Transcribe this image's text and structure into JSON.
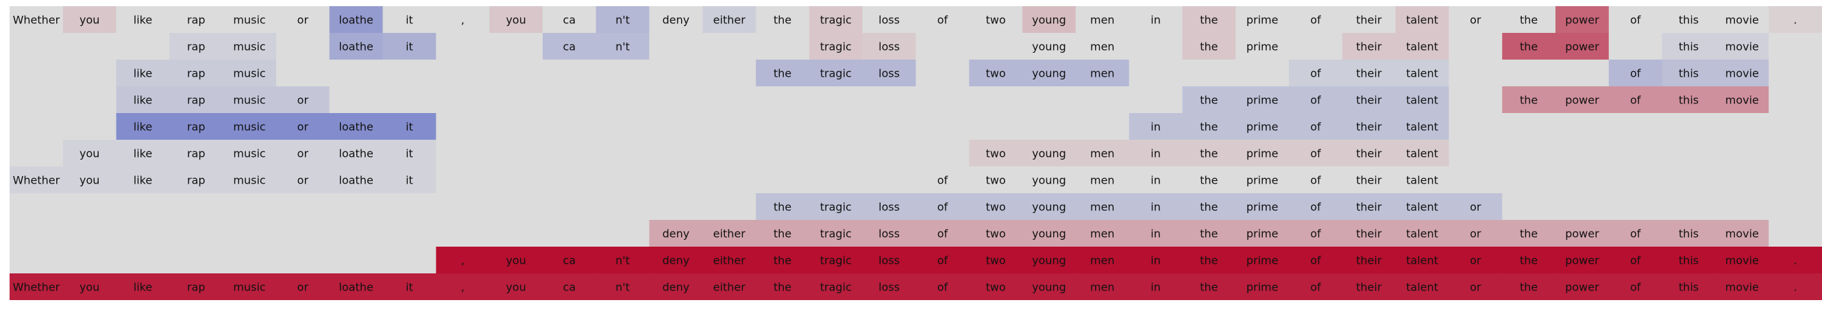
{
  "chart_data": {
    "type": "heatmap",
    "tokens": [
      "Whether",
      "you",
      "like",
      "rap",
      "music",
      "or",
      "loathe",
      "it",
      ",",
      "you",
      "ca",
      "n't",
      "deny",
      "either",
      "the",
      "tragic",
      "loss",
      "of",
      "two",
      "young",
      "men",
      "in",
      "the",
      "prime",
      "of",
      "their",
      "talent",
      "or",
      "the",
      "power",
      "of",
      "this",
      "movie",
      "."
    ],
    "rows": [
      {
        "scores": [
          0,
          0.1,
          0,
          0,
          0,
          0,
          -0.45,
          0,
          0,
          0.1,
          0,
          -0.25,
          0,
          -0.1,
          0,
          0.1,
          0,
          0,
          0,
          0.15,
          0,
          0,
          0.1,
          0,
          0,
          0,
          0.1,
          0,
          0,
          0.55,
          0,
          0,
          0,
          0.05
        ],
        "shown": [
          1,
          1,
          1,
          1,
          1,
          1,
          1,
          1,
          1,
          1,
          1,
          1,
          1,
          1,
          1,
          1,
          1,
          1,
          1,
          1,
          1,
          1,
          1,
          1,
          1,
          1,
          1,
          1,
          1,
          1,
          1,
          1,
          1,
          1
        ]
      },
      {
        "scores": [
          0,
          0,
          0,
          -0.08,
          -0.08,
          0,
          -0.35,
          -0.3,
          0,
          0,
          -0.22,
          -0.22,
          0,
          0,
          0,
          0.1,
          0.08,
          0,
          0,
          0,
          0,
          0,
          0.1,
          0,
          0,
          0.1,
          0.1,
          0,
          0.6,
          0.6,
          0,
          -0.08,
          -0.08,
          0
        ],
        "shown": [
          0,
          0,
          0,
          1,
          1,
          0,
          1,
          1,
          0,
          0,
          1,
          1,
          0,
          0,
          0,
          1,
          1,
          0,
          0,
          1,
          1,
          0,
          1,
          1,
          0,
          1,
          1,
          0,
          1,
          1,
          0,
          1,
          1,
          0
        ]
      },
      {
        "scores": [
          0,
          0,
          -0.12,
          -0.12,
          -0.12,
          0,
          0,
          0,
          0,
          0,
          0,
          0,
          0,
          0,
          -0.25,
          -0.25,
          -0.25,
          0,
          -0.25,
          -0.25,
          -0.25,
          0,
          0,
          0,
          -0.1,
          -0.1,
          -0.1,
          0,
          0,
          0,
          -0.25,
          -0.2,
          -0.2,
          0
        ],
        "shown": [
          0,
          0,
          1,
          1,
          1,
          0,
          0,
          0,
          0,
          0,
          0,
          0,
          0,
          0,
          1,
          1,
          1,
          0,
          1,
          1,
          1,
          0,
          0,
          0,
          1,
          1,
          1,
          0,
          0,
          0,
          1,
          1,
          1,
          0
        ]
      },
      {
        "scores": [
          0,
          0,
          -0.15,
          -0.15,
          -0.15,
          -0.15,
          0,
          0,
          0,
          0,
          0,
          0,
          0,
          0,
          0,
          0,
          0,
          0,
          0,
          0,
          0,
          0,
          -0.18,
          -0.18,
          -0.18,
          -0.18,
          -0.18,
          0,
          0.35,
          0.35,
          0.35,
          0.35,
          0.35,
          0
        ],
        "shown": [
          0,
          0,
          1,
          1,
          1,
          1,
          0,
          0,
          0,
          0,
          0,
          0,
          0,
          0,
          0,
          0,
          0,
          0,
          0,
          0,
          0,
          0,
          1,
          1,
          1,
          1,
          1,
          0,
          1,
          1,
          1,
          1,
          1,
          0
        ]
      },
      {
        "scores": [
          0,
          0,
          -0.55,
          -0.55,
          -0.55,
          -0.55,
          -0.55,
          -0.55,
          0,
          0,
          0,
          0,
          0,
          0,
          0,
          0,
          0,
          0,
          0,
          0,
          0,
          -0.18,
          -0.18,
          -0.18,
          -0.18,
          -0.18,
          -0.18,
          0,
          0,
          0,
          0,
          0,
          0,
          0
        ],
        "shown": [
          0,
          0,
          1,
          1,
          1,
          1,
          1,
          1,
          0,
          0,
          0,
          0,
          0,
          0,
          0,
          0,
          0,
          0,
          0,
          0,
          0,
          1,
          1,
          1,
          1,
          1,
          1,
          0,
          0,
          0,
          0,
          0,
          0,
          0
        ]
      },
      {
        "scores": [
          0,
          -0.06,
          -0.06,
          -0.06,
          -0.06,
          -0.06,
          -0.06,
          -0.06,
          0,
          0,
          0,
          0,
          0,
          0,
          0,
          0,
          0,
          0,
          0.08,
          0.08,
          0.08,
          0.08,
          0.08,
          0.08,
          0.08,
          0.08,
          0.08,
          0,
          0,
          0,
          0,
          0,
          0,
          0
        ],
        "shown": [
          0,
          1,
          1,
          1,
          1,
          1,
          1,
          1,
          0,
          0,
          0,
          0,
          0,
          0,
          0,
          0,
          0,
          0,
          1,
          1,
          1,
          1,
          1,
          1,
          1,
          1,
          1,
          0,
          0,
          0,
          0,
          0,
          0,
          0
        ]
      },
      {
        "scores": [
          -0.06,
          -0.06,
          -0.06,
          -0.06,
          -0.06,
          -0.06,
          -0.06,
          -0.06,
          0,
          0,
          0,
          0,
          0,
          0,
          0,
          0,
          0,
          0,
          0,
          0,
          0,
          0,
          0,
          0,
          0,
          0,
          0,
          0,
          0,
          0,
          0,
          0,
          0,
          0
        ],
        "shown": [
          1,
          1,
          1,
          1,
          1,
          1,
          1,
          1,
          0,
          0,
          0,
          0,
          0,
          0,
          0,
          0,
          0,
          1,
          1,
          1,
          1,
          1,
          1,
          1,
          1,
          1,
          1,
          0,
          0,
          0,
          0,
          0,
          0,
          0
        ]
      },
      {
        "scores": [
          0,
          0,
          0,
          0,
          0,
          0,
          0,
          0,
          0,
          0,
          0,
          0,
          0,
          0,
          -0.18,
          -0.18,
          -0.18,
          -0.18,
          -0.18,
          -0.18,
          -0.18,
          -0.18,
          -0.18,
          -0.18,
          -0.18,
          -0.18,
          -0.18,
          -0.18,
          0,
          0,
          0,
          0,
          0,
          0
        ],
        "shown": [
          0,
          0,
          0,
          0,
          0,
          0,
          0,
          0,
          0,
          0,
          0,
          0,
          0,
          0,
          1,
          1,
          1,
          1,
          1,
          1,
          1,
          1,
          1,
          1,
          1,
          1,
          1,
          1,
          0,
          0,
          0,
          0,
          0,
          0
        ]
      },
      {
        "scores": [
          0,
          0,
          0,
          0,
          0,
          0,
          0,
          0,
          0,
          0,
          0,
          0,
          0.25,
          0.25,
          0.25,
          0.25,
          0.25,
          0.25,
          0.25,
          0.25,
          0.25,
          0.25,
          0.25,
          0.25,
          0.25,
          0.25,
          0.25,
          0.25,
          0.25,
          0.25,
          0.25,
          0.25,
          0.25,
          0
        ],
        "shown": [
          0,
          0,
          0,
          0,
          0,
          0,
          0,
          0,
          0,
          0,
          0,
          0,
          1,
          1,
          1,
          1,
          1,
          1,
          1,
          1,
          1,
          1,
          1,
          1,
          1,
          1,
          1,
          1,
          1,
          1,
          1,
          1,
          1,
          0
        ]
      },
      {
        "scores": [
          0,
          0,
          0,
          0,
          0,
          0,
          0,
          0,
          0.95,
          0.95,
          0.95,
          0.95,
          0.95,
          0.95,
          0.95,
          0.95,
          0.95,
          0.95,
          0.95,
          0.95,
          0.95,
          0.95,
          0.95,
          0.95,
          0.95,
          0.95,
          0.95,
          0.95,
          0.95,
          0.95,
          0.95,
          0.95,
          0.95,
          0.95
        ],
        "shown": [
          0,
          0,
          0,
          0,
          0,
          0,
          0,
          0,
          1,
          1,
          1,
          1,
          1,
          1,
          1,
          1,
          1,
          1,
          1,
          1,
          1,
          1,
          1,
          1,
          1,
          1,
          1,
          1,
          1,
          1,
          1,
          1,
          1,
          1
        ]
      },
      {
        "scores": [
          0.88,
          0.88,
          0.88,
          0.88,
          0.88,
          0.88,
          0.88,
          0.88,
          0.88,
          0.88,
          0.88,
          0.88,
          0.88,
          0.88,
          0.88,
          0.88,
          0.88,
          0.88,
          0.88,
          0.88,
          0.88,
          0.88,
          0.88,
          0.88,
          0.88,
          0.88,
          0.88,
          0.88,
          0.88,
          0.88,
          0.88,
          0.88,
          0.88,
          0.88
        ],
        "shown": [
          1,
          1,
          1,
          1,
          1,
          1,
          1,
          1,
          1,
          1,
          1,
          1,
          1,
          1,
          1,
          1,
          1,
          1,
          1,
          1,
          1,
          1,
          1,
          1,
          1,
          1,
          1,
          1,
          1,
          1,
          1,
          1,
          1,
          1
        ]
      }
    ],
    "colormap": {
      "negative": "#3b4cc0",
      "neutral": "#dcdcdc",
      "positive": "#b40426"
    },
    "value_range": [
      -1,
      1
    ]
  }
}
